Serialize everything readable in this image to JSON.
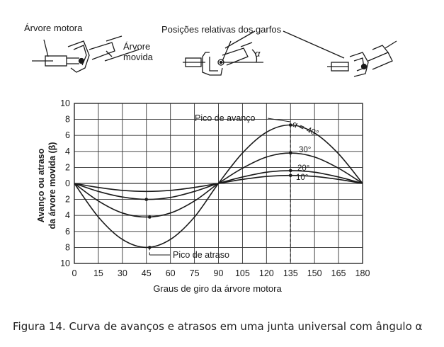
{
  "chart_data": {
    "type": "line",
    "xlabel": "Graus de giro da árvore motora",
    "ylabel_line1": "Avanço ou atraso",
    "ylabel_line2": "da árvore movida (β)",
    "x_ticks": [
      "0",
      "15",
      "30",
      "45",
      "60",
      "75",
      "90",
      "105",
      "120",
      "135",
      "150",
      "165",
      "180"
    ],
    "y_ticks_upper": [
      "10",
      "8",
      "6",
      "4",
      "2",
      "0"
    ],
    "y_ticks_lower": [
      "2",
      "4",
      "6",
      "8",
      "10"
    ],
    "xlim": [
      0,
      180
    ],
    "ylim": [
      -10,
      10
    ],
    "grid": true,
    "series": [
      {
        "name": "10°",
        "peak_x": 135,
        "peak_y": 1.0,
        "trough_x": 45,
        "trough_y": -1.0,
        "points": [
          [
            0,
            0
          ],
          [
            15,
            -0.5
          ],
          [
            30,
            -0.87
          ],
          [
            45,
            -1.0
          ],
          [
            60,
            -0.87
          ],
          [
            75,
            -0.5
          ],
          [
            90,
            0
          ],
          [
            105,
            0.5
          ],
          [
            120,
            0.87
          ],
          [
            135,
            1.0
          ],
          [
            150,
            0.87
          ],
          [
            165,
            0.5
          ],
          [
            180,
            0
          ]
        ]
      },
      {
        "name": "20°",
        "peak_x": 135,
        "peak_y": 1.6,
        "trough_x": 45,
        "trough_y": -2.0,
        "points": [
          [
            0,
            0
          ],
          [
            15,
            -1.0
          ],
          [
            30,
            -1.7
          ],
          [
            45,
            -2.0
          ],
          [
            60,
            -1.75
          ],
          [
            75,
            -1.0
          ],
          [
            90,
            0
          ],
          [
            105,
            0.8
          ],
          [
            120,
            1.4
          ],
          [
            135,
            1.6
          ],
          [
            150,
            1.4
          ],
          [
            165,
            0.8
          ],
          [
            180,
            0
          ]
        ]
      },
      {
        "name": "30°",
        "peak_x": 135,
        "peak_y": 3.8,
        "trough_x": 47,
        "trough_y": -4.2,
        "points": [
          [
            0,
            0
          ],
          [
            15,
            -2.2
          ],
          [
            30,
            -3.7
          ],
          [
            45,
            -4.2
          ],
          [
            60,
            -3.7
          ],
          [
            75,
            -2.2
          ],
          [
            90,
            0
          ],
          [
            105,
            1.9
          ],
          [
            120,
            3.3
          ],
          [
            135,
            3.8
          ],
          [
            150,
            3.3
          ],
          [
            165,
            1.9
          ],
          [
            180,
            0
          ]
        ]
      },
      {
        "name": "40°",
        "peak_x": 135,
        "peak_y": 7.3,
        "trough_x": 47,
        "trough_y": -8.0,
        "points": [
          [
            0,
            0
          ],
          [
            15,
            -4.2
          ],
          [
            30,
            -7.0
          ],
          [
            45,
            -8.0
          ],
          [
            60,
            -7.0
          ],
          [
            75,
            -4.2
          ],
          [
            90,
            0
          ],
          [
            105,
            3.8
          ],
          [
            120,
            6.4
          ],
          [
            135,
            7.3
          ],
          [
            150,
            6.3
          ],
          [
            165,
            3.7
          ],
          [
            180,
            0
          ]
        ]
      }
    ],
    "annotations": {
      "peak": "Pico de avanço",
      "trough": "Pico de atraso",
      "alpha_prefix": "α ="
    }
  },
  "diagram_labels": {
    "driving_shaft": "Árvore motora",
    "driven_shaft_line1": "Árvore",
    "driven_shaft_line2": "movida",
    "fork_positions": "Posições relativas dos garfos",
    "alpha": "α"
  },
  "caption": "Figura 14. Curva de avanços e atrasos em uma junta universal com ângulo α"
}
